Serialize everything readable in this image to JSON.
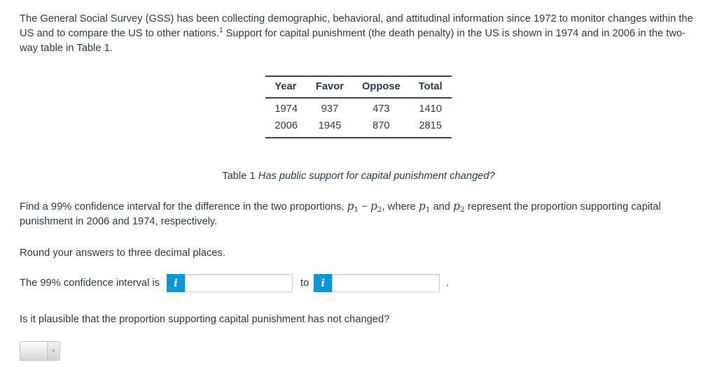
{
  "colors": {
    "text": "#2d3b45",
    "accent_blue": "#0d96dc",
    "input_border": "#c7cdd1",
    "table_rule": "#39444e"
  },
  "intro": {
    "text_before_sup": "The General Social Survey (GSS) has been collecting demographic, behavioral, and attitudinal information since 1972 to monitor changes within the US and to compare the US to other nations.",
    "superscript": "1",
    "text_after_sup": " Support for capital punishment (the death penalty) in the US is shown in 1974 and in 2006 in the two-way table in Table 1."
  },
  "table": {
    "headers": [
      "Year",
      "Favor",
      "Oppose",
      "Total"
    ],
    "rows": [
      [
        "1974",
        "937",
        "473",
        "1410"
      ],
      [
        "2006",
        "1945",
        "870",
        "2815"
      ]
    ],
    "caption_label": "Table 1",
    "caption_text": "Has public support for capital punishment changed?"
  },
  "prompt": {
    "segment1": "Find a 99% confidence interval for the difference in the two proportions, ",
    "math1": {
      "base": "p",
      "sub": "1"
    },
    "segment2": " − ",
    "math2": {
      "base": "p",
      "sub": "2"
    },
    "segment3": ", where ",
    "math3": {
      "base": "p",
      "sub": "1"
    },
    "segment4": " and ",
    "math4": {
      "base": "p",
      "sub": "2"
    },
    "segment5": " represent the proportion supporting capital punishment in 2006 and 1974, respectively."
  },
  "round_note": "Round your answers to three decimal places.",
  "answer_row": {
    "label": "The 99% confidence interval is",
    "info_icon_glyph": "i",
    "input1_value": "",
    "input1_placeholder": "",
    "to_label": "to",
    "input2_value": "",
    "input2_placeholder": "",
    "period": "."
  },
  "plausible_question": "Is it plausible that the proportion supporting capital punishment has not changed?",
  "dropdown": {
    "selected_value": "",
    "arrow_glyph": "▾"
  }
}
